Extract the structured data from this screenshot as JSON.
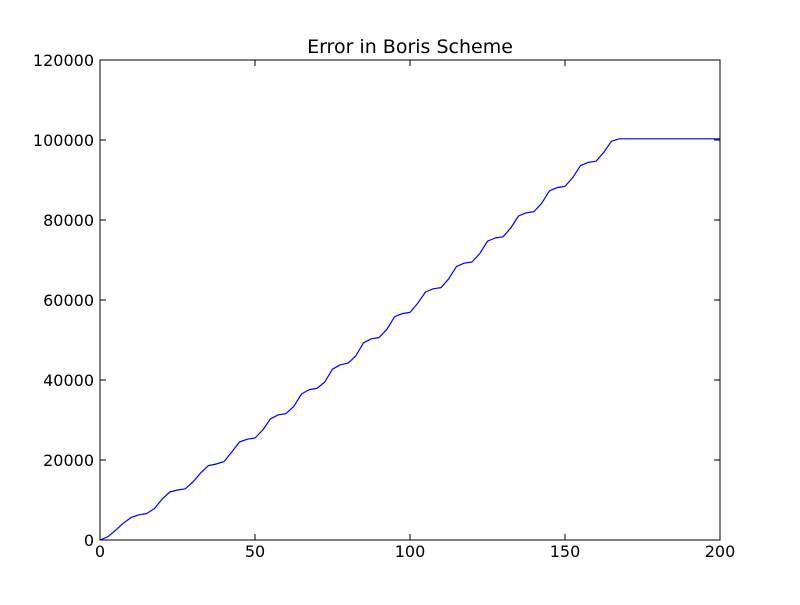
{
  "chart_data": {
    "type": "line",
    "title": "Error in Boris Scheme",
    "xlabel": "",
    "ylabel": "",
    "xlim": [
      0,
      200
    ],
    "ylim": [
      0,
      120000
    ],
    "xticks": [
      0,
      50,
      100,
      150,
      200
    ],
    "yticks": [
      0,
      20000,
      40000,
      60000,
      80000,
      100000,
      120000
    ],
    "grid": false,
    "legend": "none",
    "series": [
      {
        "color": "#0000ff",
        "x": [
          0,
          2.5,
          5,
          7.5,
          10,
          12.5,
          15,
          17.5,
          20,
          22.5,
          25,
          27.5,
          30,
          32.5,
          35,
          37.5,
          40,
          42.5,
          45,
          47.5,
          50,
          52.5,
          55,
          57.5,
          60,
          62.5,
          65,
          67.5,
          70,
          72.5,
          75,
          77.5,
          80,
          82.5,
          85,
          87.5,
          90,
          92.5,
          95,
          97.5,
          100,
          102.5,
          105,
          107.5,
          110,
          112.5,
          115,
          117.5,
          120,
          122.5,
          125,
          127.5,
          130,
          132.5,
          135,
          137.5,
          140,
          142.5,
          145,
          147.5,
          150,
          152.5,
          155,
          157.5,
          160,
          162.5,
          165,
          167.5,
          170,
          172.5,
          175,
          177.5,
          180,
          182.5,
          185,
          187.5,
          190,
          192.5,
          195,
          197.5,
          200
        ],
        "y": [
          0,
          800,
          2400,
          4200,
          5600,
          6300,
          6600,
          7800,
          10200,
          12000,
          12500,
          12800,
          14500,
          16800,
          18600,
          19000,
          19600,
          22000,
          24500,
          25200,
          25500,
          27500,
          30300,
          31300,
          31600,
          33400,
          36500,
          37600,
          37900,
          39500,
          42700,
          43800,
          44200,
          46000,
          49300,
          50300,
          50600,
          52600,
          55800,
          56600,
          56900,
          59200,
          62000,
          62800,
          63100,
          65300,
          68400,
          69200,
          69500,
          71600,
          74700,
          75500,
          75800,
          78000,
          81000,
          81800,
          82100,
          84200,
          87300,
          88100,
          88400,
          90600,
          93600,
          94400,
          94700,
          96900,
          99700,
          100300,
          100300,
          100300,
          100300,
          100300,
          100300,
          100300,
          100300,
          100300,
          100300,
          100300,
          100300,
          100300,
          100300
        ]
      }
    ]
  }
}
